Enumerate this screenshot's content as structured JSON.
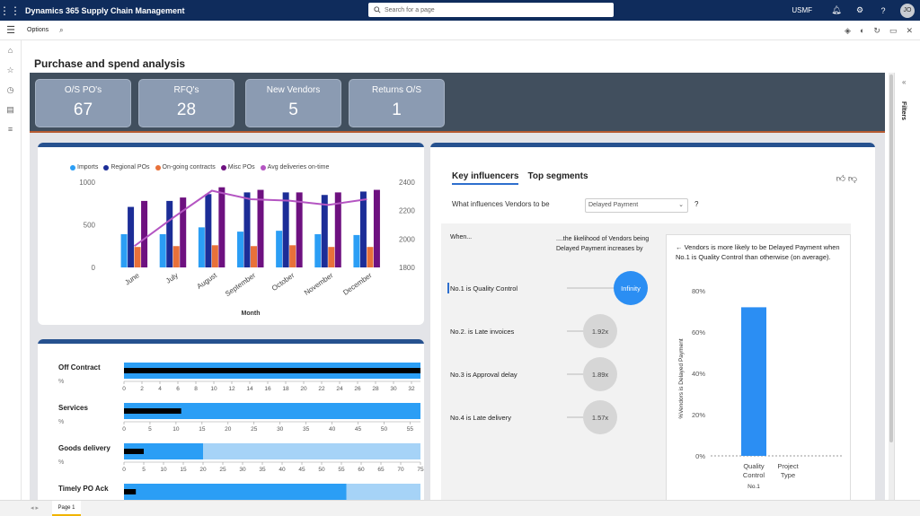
{
  "topbar": {
    "title": "Dynamics 365 Supply Chain Management",
    "search_placeholder": "Search for a page",
    "company": "USMF",
    "avatar": "JO"
  },
  "options": {
    "label": "Options"
  },
  "page": {
    "title": "Purchase and spend analysis",
    "tab": "Page 1",
    "filters": "Filters"
  },
  "kpis": [
    {
      "label": "O/S PO's",
      "value": "67"
    },
    {
      "label": "RFQ's",
      "value": "28"
    },
    {
      "label": "New Vendors",
      "value": "5"
    },
    {
      "label": "Returns O/S",
      "value": "1"
    }
  ],
  "chart_data": [
    {
      "type": "bar",
      "categories": [
        "June",
        "July",
        "August",
        "September",
        "October",
        "November",
        "December"
      ],
      "xlabel": "Month",
      "ylim": [
        0,
        1000
      ],
      "yticks": [
        "1000",
        "500",
        "0"
      ],
      "y2lim": [
        1800,
        2400
      ],
      "y2ticks": [
        "2400",
        "2200",
        "2000",
        "1800"
      ],
      "series": [
        {
          "name": "Imports",
          "color": "#2b9ef5",
          "values": [
            390,
            390,
            470,
            420,
            430,
            390,
            380
          ]
        },
        {
          "name": "Regional POs",
          "color": "#1c2d97",
          "values": [
            710,
            780,
            860,
            880,
            880,
            850,
            890
          ]
        },
        {
          "name": "On-going contracts",
          "color": "#e8713a",
          "values": [
            240,
            250,
            260,
            250,
            260,
            240,
            240
          ]
        },
        {
          "name": "Misc POs",
          "color": "#6e1180",
          "values": [
            780,
            820,
            940,
            910,
            880,
            880,
            910
          ]
        },
        {
          "name": "Avg deliveries on-time",
          "color": "#b455c2",
          "type": "line",
          "values": [
            1950,
            2150,
            2340,
            2280,
            2270,
            2240,
            2280
          ]
        }
      ]
    },
    {
      "type": "bar",
      "title": "",
      "rows": [
        {
          "name": "Off Contract",
          "unit": "%",
          "ticks": [
            "0",
            "2",
            "4",
            "6",
            "8",
            "10",
            "12",
            "14",
            "16",
            "18",
            "20",
            "22",
            "24",
            "26",
            "28",
            "30",
            "32"
          ],
          "max": 33,
          "target": 33,
          "actual": 33,
          "band": 33
        },
        {
          "name": "Services",
          "unit": "%",
          "ticks": [
            "0",
            "5",
            "10",
            "15",
            "20",
            "25",
            "30",
            "35",
            "40",
            "45",
            "50",
            "55"
          ],
          "max": 57,
          "target": 57,
          "actual": 11,
          "band": 57
        },
        {
          "name": "Goods delivery",
          "unit": "%",
          "ticks": [
            "0",
            "5",
            "10",
            "15",
            "20",
            "25",
            "30",
            "35",
            "40",
            "45",
            "50",
            "55",
            "60",
            "65",
            "70",
            "75"
          ],
          "max": 75,
          "target": 20,
          "actual": 5,
          "band": 75
        },
        {
          "name": "Timely PO Ack",
          "unit": "",
          "ticks": [],
          "max": 100,
          "target": 75,
          "actual": 4,
          "band": 100
        }
      ]
    },
    {
      "type": "bar",
      "title": "",
      "categories": [
        "Quality Control",
        "Project Type"
      ],
      "group_label": "No.1",
      "ylabel": "%Vendors is Delayed Payment",
      "yticks": [
        "80%",
        "60%",
        "40%",
        "20%",
        "0%"
      ],
      "ylim": [
        0,
        80
      ],
      "values": [
        72,
        0
      ]
    }
  ],
  "influencers": {
    "tabs": [
      "Key influencers",
      "Top segments"
    ],
    "question": "What influences Vendors to be",
    "dropdown": "Delayed Payment",
    "qmark": "?",
    "col_when": "When...",
    "col_likely": "....the likelihood of Vendors being Delayed Payment increases by",
    "rows": [
      {
        "label": "No.1 is Quality Control",
        "value": "Infinity"
      },
      {
        "label": "No.2. is Late invoices",
        "value": "1.92x"
      },
      {
        "label": "No.3 is Approval delay",
        "value": "1.89x"
      },
      {
        "label": "No.4 is Late delivery",
        "value": "1.57x"
      }
    ],
    "panel_text": "Vendors is more likely to be Delayed Payment when No.1 is Quality Control than otherwise (on average)."
  }
}
